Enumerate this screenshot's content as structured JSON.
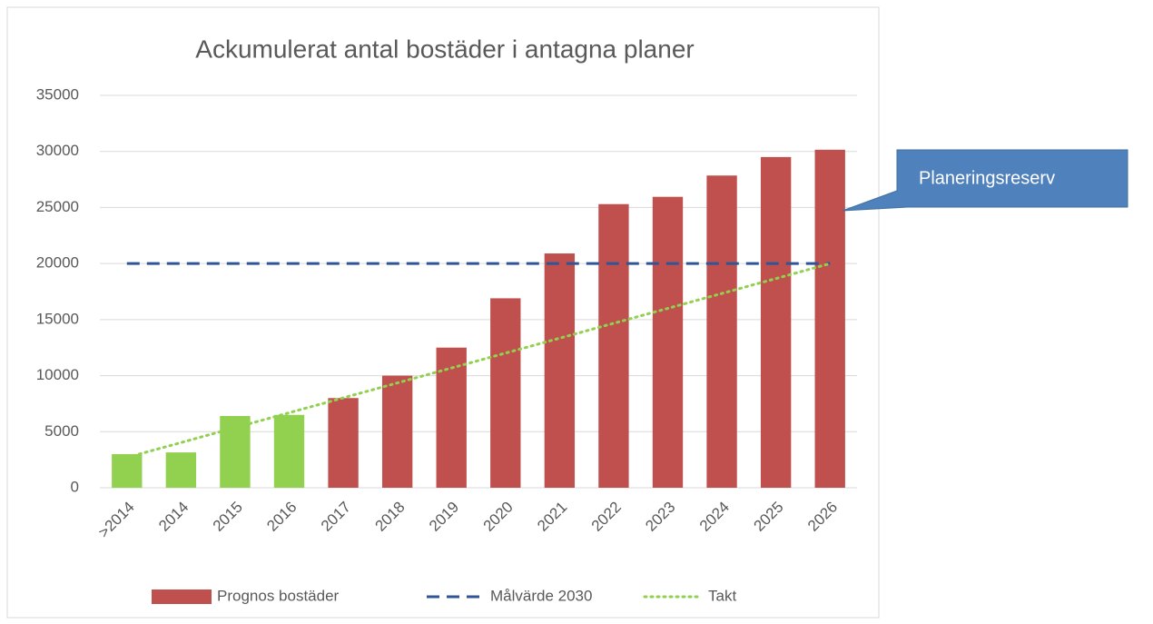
{
  "chart_data": {
    "type": "bar",
    "title": "Ackumulerat antal bostäder i antagna planer",
    "categories": [
      ">2014",
      "2014",
      "2015",
      "2016",
      "2017",
      "2018",
      "2019",
      "2020",
      "2021",
      "2022",
      "2023",
      "2024",
      "2025",
      "2026"
    ],
    "series": [
      {
        "name": "Prognos bostäder",
        "type": "bar",
        "color": "#c0504d",
        "colors": [
          "#92d050",
          "#92d050",
          "#92d050",
          "#92d050",
          "#c0504d",
          "#c0504d",
          "#c0504d",
          "#c0504d",
          "#c0504d",
          "#c0504d",
          "#c0504d",
          "#c0504d",
          "#c0504d",
          "#c0504d"
        ],
        "values": [
          3000,
          3150,
          6400,
          6500,
          8000,
          10000,
          12500,
          16900,
          20900,
          25300,
          25950,
          27850,
          29500,
          30150
        ]
      },
      {
        "name": "Målvärde 2030",
        "type": "line",
        "style": "dashed",
        "color": "#2f5597",
        "values": [
          20000,
          20000,
          20000,
          20000,
          20000,
          20000,
          20000,
          20000,
          20000,
          20000,
          20000,
          20000,
          20000,
          20000
        ]
      },
      {
        "name": "Takt",
        "type": "line",
        "style": "dotted",
        "color": "#92d050",
        "values": [
          2700,
          4030,
          5360,
          6690,
          8020,
          9350,
          10680,
          12010,
          13340,
          14670,
          16000,
          17330,
          18660,
          20000
        ]
      }
    ],
    "ylim": [
      0,
      35000
    ],
    "yticks": [
      0,
      5000,
      10000,
      15000,
      20000,
      25000,
      30000,
      35000
    ],
    "grid": true,
    "legend": "bottom",
    "annotation": {
      "text": "Planeringsreserv",
      "color": "#4f81bd"
    }
  }
}
